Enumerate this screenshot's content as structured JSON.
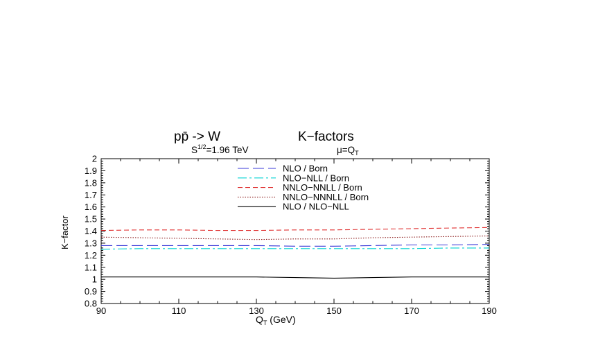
{
  "chart_data": {
    "type": "line",
    "title_main": "pp̄ -> W",
    "title_right": "K−factors",
    "subtitle_energy": "=1.96 TeV",
    "subtitle_energy_prefix": "S",
    "subtitle_energy_sup": "1/2",
    "subtitle_scale": "μ=Q",
    "subtitle_scale_sub": "T",
    "xlabel": "Q",
    "xlabel_sub": "T",
    "xlabel_unit": " (GeV)",
    "ylabel": "K−factor",
    "xlim": [
      90,
      190
    ],
    "ylim": [
      0.8,
      2
    ],
    "x_ticks": [
      "90",
      "110",
      "130",
      "150",
      "170",
      "190"
    ],
    "y_ticks": [
      "0.8",
      "0.9",
      "1",
      "1.1",
      "1.2",
      "1.3",
      "1.4",
      "1.5",
      "1.6",
      "1.7",
      "1.8",
      "1.9",
      "2"
    ],
    "grid": false,
    "legend_position": "top-center",
    "series": [
      {
        "name": "NLO / Born",
        "color": "#3a3ad8",
        "dash": "long-dash",
        "x": [
          90,
          100,
          110,
          120,
          130,
          140,
          150,
          160,
          170,
          180,
          190
        ],
        "y": [
          1.28,
          1.28,
          1.28,
          1.28,
          1.28,
          1.275,
          1.275,
          1.28,
          1.285,
          1.285,
          1.29
        ]
      },
      {
        "name": "NLO−NLL / Born",
        "color": "#00d2d2",
        "dash": "dash-dot",
        "x": [
          90,
          100,
          110,
          120,
          130,
          140,
          150,
          160,
          170,
          180,
          190
        ],
        "y": [
          1.25,
          1.255,
          1.255,
          1.255,
          1.255,
          1.255,
          1.255,
          1.255,
          1.255,
          1.26,
          1.26
        ]
      },
      {
        "name": "NNLO−NNLL / Born",
        "color": "#e03030",
        "dash": "short-dash",
        "x": [
          90,
          100,
          110,
          120,
          130,
          140,
          150,
          160,
          170,
          180,
          190
        ],
        "y": [
          1.405,
          1.41,
          1.41,
          1.405,
          1.405,
          1.41,
          1.41,
          1.415,
          1.42,
          1.425,
          1.43
        ]
      },
      {
        "name": "NNLO−NNNLL / Born",
        "color": "#8b1a1a",
        "dash": "dotted",
        "x": [
          90,
          100,
          110,
          120,
          130,
          140,
          150,
          160,
          170,
          180,
          190
        ],
        "y": [
          1.35,
          1.345,
          1.34,
          1.335,
          1.33,
          1.335,
          1.335,
          1.345,
          1.35,
          1.355,
          1.36
        ]
      },
      {
        "name": "NLO / NLO−NLL",
        "color": "#000000",
        "dash": "solid",
        "x": [
          90,
          100,
          110,
          120,
          130,
          140,
          150,
          160,
          170,
          180,
          190
        ],
        "y": [
          1.02,
          1.02,
          1.02,
          1.02,
          1.02,
          1.015,
          1.01,
          1.015,
          1.02,
          1.02,
          1.02
        ]
      }
    ]
  }
}
